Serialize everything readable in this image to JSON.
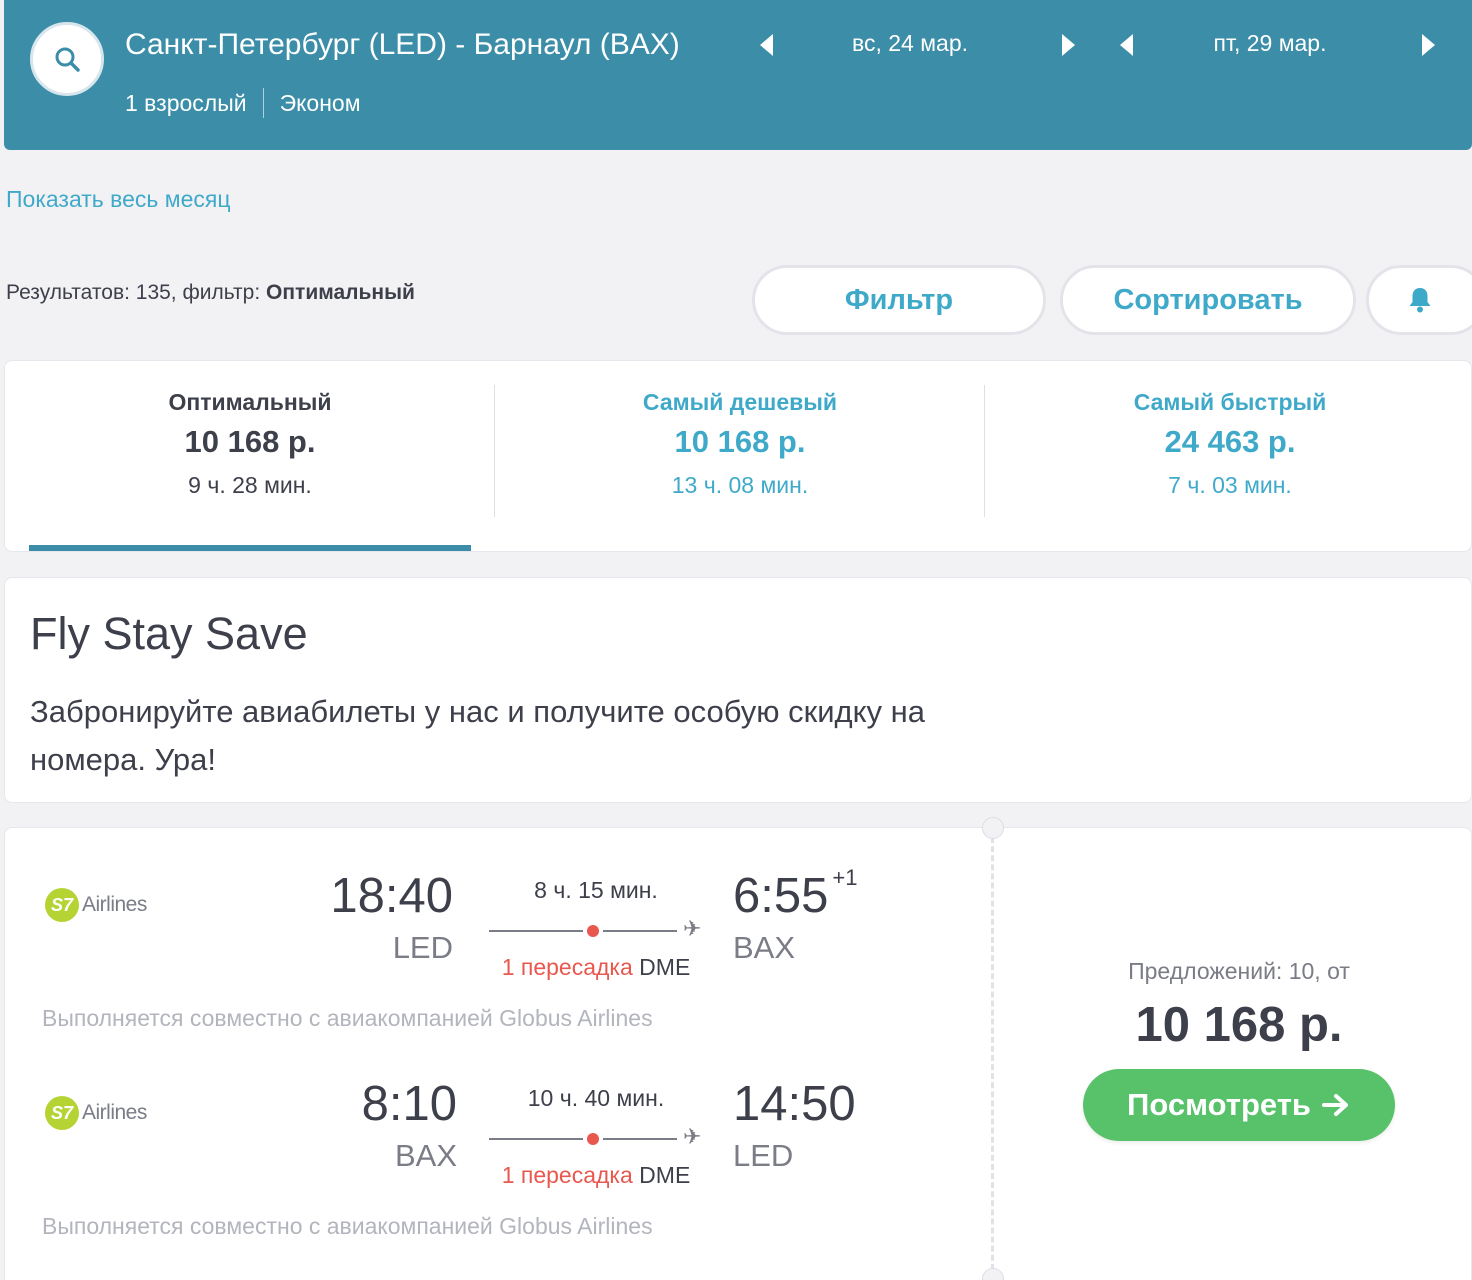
{
  "header": {
    "route": "Санкт-Петербург (LED) - Барнаул (BAX)",
    "passengers": "1 взрослый",
    "cabin": "Эконом",
    "depart_date": "вс, 24 мар.",
    "return_date": "пт, 29 мар."
  },
  "show_month_link": "Показать весь месяц",
  "results": {
    "prefix": "Результатов: 135, фильтр: ",
    "filter": "Оптимальный"
  },
  "buttons": {
    "filter": "Фильтр",
    "sort": "Сортировать",
    "bell_icon": "bell-icon"
  },
  "tabs": [
    {
      "title": "Оптимальный",
      "price": "10 168 р.",
      "duration": "9 ч. 28 мин."
    },
    {
      "title": "Самый дешевый",
      "price": "10 168 р.",
      "duration": "13 ч. 08 мин."
    },
    {
      "title": "Самый быстрый",
      "price": "24 463 р.",
      "duration": "7 ч. 03 мин."
    }
  ],
  "promo": {
    "title": "Fly Stay Save",
    "text": "Забронируйте авиабилеты у нас и получите особую скидку на номера. Ура!"
  },
  "flight": {
    "segments": [
      {
        "airline_logo": "S7",
        "airline_name": "Airlines",
        "dep_time": "18:40",
        "dep_code": "LED",
        "duration": "8 ч. 15 мин.",
        "stops": "1 пересадка",
        "hub": "DME",
        "arr_time": "6:55",
        "day_offset": "+1",
        "arr_code": "BAX",
        "operated_by": "Выполняется совместно с авиакомпанией Globus Airlines"
      },
      {
        "airline_logo": "S7",
        "airline_name": "Airlines",
        "dep_time": "8:10",
        "dep_code": "BAX",
        "duration": "10 ч. 40 мин.",
        "stops": "1 пересадка",
        "hub": "DME",
        "arr_time": "14:50",
        "day_offset": "",
        "arr_code": "LED",
        "operated_by": "Выполняется совместно с авиакомпанией Globus Airlines"
      }
    ],
    "offers": "Предложений: 10, от",
    "price": "10 168 р.",
    "view_button": "Посмотреть"
  },
  "colors": {
    "header_bg": "#3b8da8",
    "accent": "#3fa9c9",
    "cta_green": "#58c26b",
    "stop_red": "#e8584f"
  }
}
